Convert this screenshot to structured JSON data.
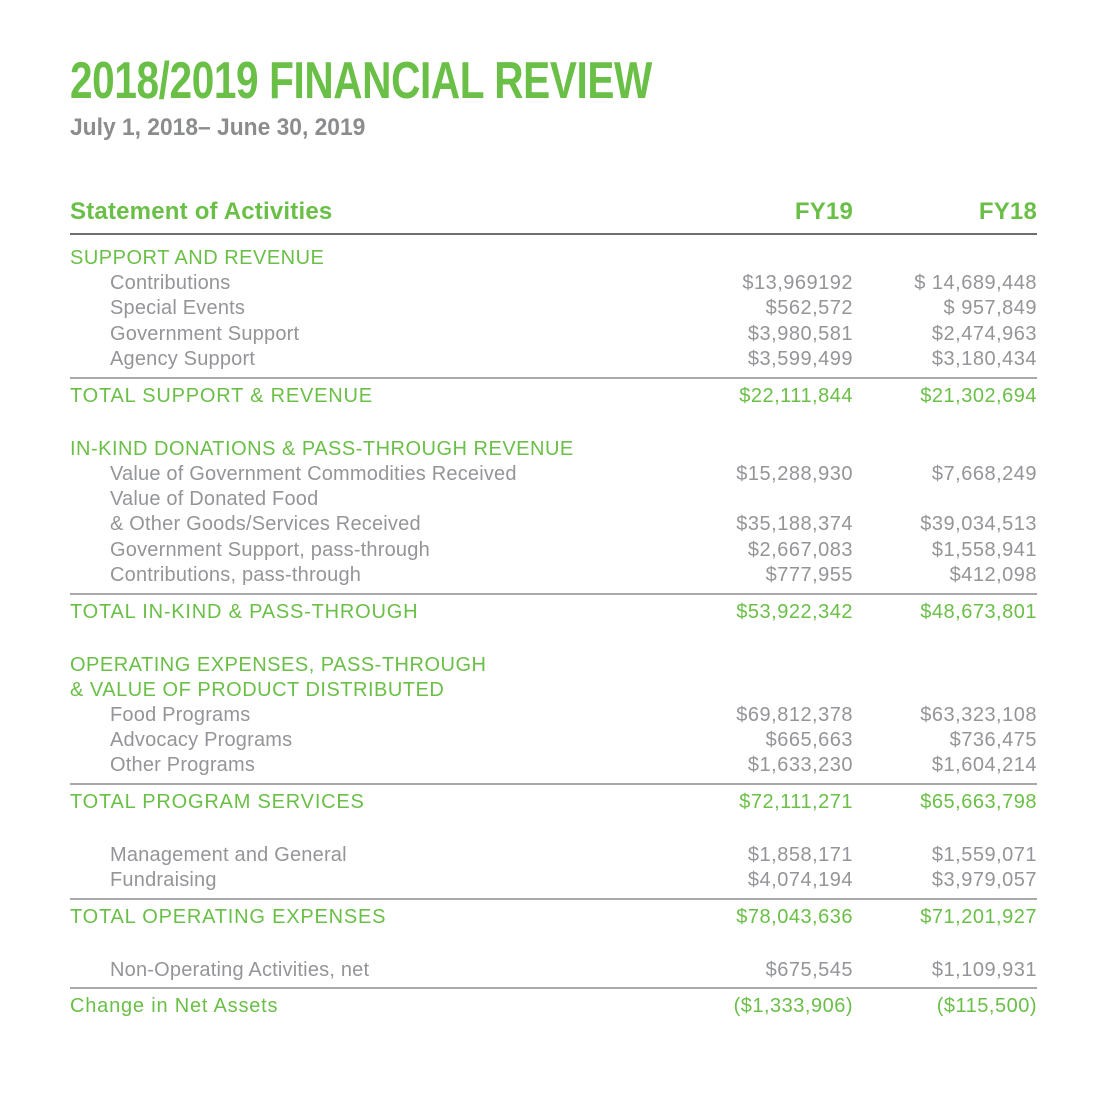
{
  "page": {
    "title": "2018/2019 FINANCIAL REVIEW",
    "subtitle": "July 1, 2018– June 30, 2019"
  },
  "colors": {
    "green": "#6abf47",
    "text_gray": "#939598",
    "subtitle_gray": "#8a8c8e",
    "rule_dark": "#6d6e71",
    "rule_light": "#a7a9ac"
  },
  "table": {
    "title": "Statement of Activities",
    "columns": [
      "FY19",
      "FY18"
    ],
    "sections": [
      {
        "heading": "SUPPORT AND REVENUE",
        "rows": [
          {
            "label": "Contributions",
            "fy19": "$13,969192",
            "fy18": "$ 14,689,448"
          },
          {
            "label": "Special Events",
            "fy19": "$562,572",
            "fy18": "$ 957,849"
          },
          {
            "label": "Government Support",
            "fy19": "$3,980,581",
            "fy18": "$2,474,963"
          },
          {
            "label": "Agency Support",
            "fy19": "$3,599,499",
            "fy18": "$3,180,434"
          }
        ],
        "total": {
          "label": "TOTAL SUPPORT & REVENUE",
          "fy19": "$22,111,844",
          "fy18": "$21,302,694"
        }
      },
      {
        "heading": "IN-KIND DONATIONS & PASS-THROUGH REVENUE",
        "rows": [
          {
            "label": "Value of Government Commodities Received",
            "fy19": "$15,288,930",
            "fy18": "$7,668,249"
          },
          {
            "label": "Value of Donated Food",
            "fy19": "",
            "fy18": ""
          },
          {
            "label": "& Other Goods/Services Received",
            "fy19": "$35,188,374",
            "fy18": "$39,034,513"
          },
          {
            "label": "Government Support, pass-through",
            "fy19": "$2,667,083",
            "fy18": "$1,558,941"
          },
          {
            "label": "Contributions, pass-through",
            "fy19": "$777,955",
            "fy18": "$412,098"
          }
        ],
        "total": {
          "label": "TOTAL IN-KIND & PASS-THROUGH",
          "fy19": "$53,922,342",
          "fy18": "$48,673,801"
        }
      },
      {
        "heading": "OPERATING EXPENSES, PASS-THROUGH\n& VALUE OF PRODUCT DISTRIBUTED",
        "rows": [
          {
            "label": "Food Programs",
            "fy19": "$69,812,378",
            "fy18": "$63,323,108"
          },
          {
            "label": "Advocacy Programs",
            "fy19": "$665,663",
            "fy18": "$736,475"
          },
          {
            "label": "Other Programs",
            "fy19": "$1,633,230",
            "fy18": "$1,604,214"
          }
        ],
        "total": {
          "label": "TOTAL PROGRAM SERVICES",
          "fy19": "$72,111,271",
          "fy18": "$65,663,798"
        }
      },
      {
        "heading": "",
        "rows": [
          {
            "label": "Management and General",
            "fy19": "$1,858,171",
            "fy18": "$1,559,071"
          },
          {
            "label": "Fundraising",
            "fy19": "$4,074,194",
            "fy18": "$3,979,057"
          }
        ],
        "total": {
          "label": "TOTAL OPERATING EXPENSES",
          "fy19": "$78,043,636",
          "fy18": "$71,201,927"
        }
      },
      {
        "heading": "",
        "rows": [
          {
            "label": "Non-Operating Activities, net",
            "fy19": "$675,545",
            "fy18": "$1,109,931"
          }
        ],
        "total": {
          "label": "Change in Net Assets",
          "fy19": "($1,333,906)",
          "fy18": "($115,500)"
        }
      }
    ]
  }
}
